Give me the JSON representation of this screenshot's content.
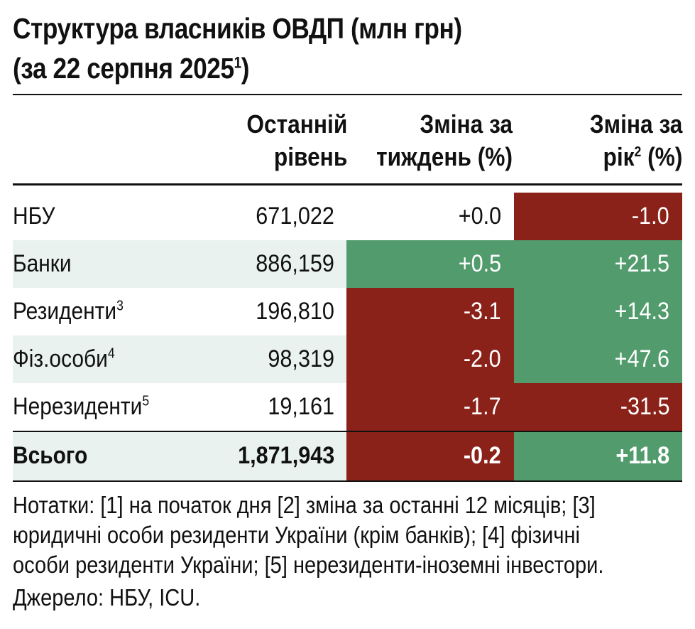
{
  "title": {
    "line1": "Структура власників ОВДП (млн грн)",
    "line2": "(за 22 серпня 2025",
    "line2_sup": "1",
    "line2_end": ")"
  },
  "columns": {
    "c1": {
      "line1": "Останній",
      "line2": "рівень"
    },
    "c2": {
      "line1": "Зміна за",
      "line2": "тиждень (%)"
    },
    "c3": {
      "line1": "Зміна за",
      "line2a": "рік",
      "line2_sup": "2",
      "line2b": " (%)"
    }
  },
  "rows": [
    {
      "label": "НБУ",
      "sup": "",
      "level": "671,022",
      "week": "+0.0",
      "year": "-1.0",
      "week_color": "none",
      "year_color": "red"
    },
    {
      "label": "Банки",
      "sup": "",
      "level": "886,159",
      "week": "+0.5",
      "year": "+21.5",
      "week_color": "green",
      "year_color": "green"
    },
    {
      "label": "Резиденти",
      "sup": "3",
      "level": "196,810",
      "week": "-3.1",
      "year": "+14.3",
      "week_color": "red",
      "year_color": "green"
    },
    {
      "label": "Фіз.особи",
      "sup": "4",
      "level": "98,319",
      "week": "-2.0",
      "year": "+47.6",
      "week_color": "red",
      "year_color": "green"
    },
    {
      "label": "Нерезиденти",
      "sup": "5",
      "level": "19,161",
      "week": "-1.7",
      "year": "-31.5",
      "week_color": "red",
      "year_color": "red"
    }
  ],
  "total": {
    "label": "Всього",
    "level": "1,871,943",
    "week": "-0.2",
    "year": "+11.8",
    "week_color": "red",
    "year_color": "green"
  },
  "notes": {
    "line1": "Нотатки: [1] на початок дня [2] зміна за останні 12 місяців; [3]",
    "line2": "юридичні особи  резиденти України (крім банків); [4] фізичні",
    "line3": "особи резиденти України; [5] нерезиденти-іноземні інвестори."
  },
  "source": "Джерело: НБУ, ICU.",
  "colors": {
    "red": "#8b2219",
    "green": "#519b6c",
    "alt_row": "#e9f2ee"
  }
}
